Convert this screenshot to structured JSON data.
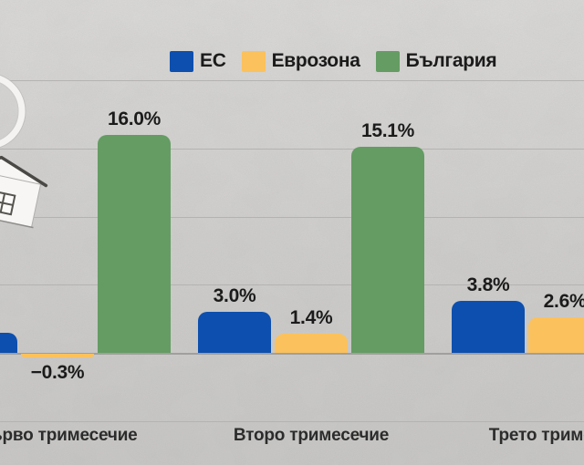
{
  "legend": {
    "items": [
      {
        "id": "ec",
        "label": "ЕС",
        "color": "#0d4fae"
      },
      {
        "id": "evrozona",
        "label": "Еврозона",
        "color": "#fbc15c"
      },
      {
        "id": "bulgaria",
        "label": "България",
        "color": "#649c63"
      }
    ]
  },
  "chart_data": {
    "type": "bar",
    "unit": "%",
    "categories": [
      "Първо тримесечие",
      "Второ тримесечие",
      "Трето тримесечие"
    ],
    "series": [
      {
        "id": "ec",
        "name": "ЕС",
        "color": "#0d4fae",
        "values": [
          1.5,
          3.0,
          3.8
        ],
        "labels": [
          "",
          "3.0%",
          "3.8%"
        ]
      },
      {
        "id": "evrozona",
        "name": "Еврозона",
        "color": "#fbc15c",
        "values": [
          -0.3,
          1.4,
          2.6
        ],
        "labels": [
          "−0.3%",
          "1.4%",
          "2.6%"
        ]
      },
      {
        "id": "bulgaria",
        "name": "България",
        "color": "#649c63",
        "values": [
          16.0,
          15.1,
          null
        ],
        "labels": [
          "16.0%",
          "15.1%",
          ""
        ]
      }
    ],
    "ylim": [
      -5,
      21
    ],
    "gridline_values": [
      20,
      15,
      10,
      5,
      0,
      -5
    ],
    "grid": "horizontal",
    "y_axis_tick_labels": "none",
    "legend_position": "top",
    "notes": "Image is cropped: first-quarter EU bar, first/third category labels and third-quarter Еврозона bar are cut by the image edges; България bar for the third quarter is outside the frame."
  },
  "decor": {
    "icons": [
      {
        "name": "magnifier-icon"
      },
      {
        "name": "house-icon"
      }
    ]
  }
}
